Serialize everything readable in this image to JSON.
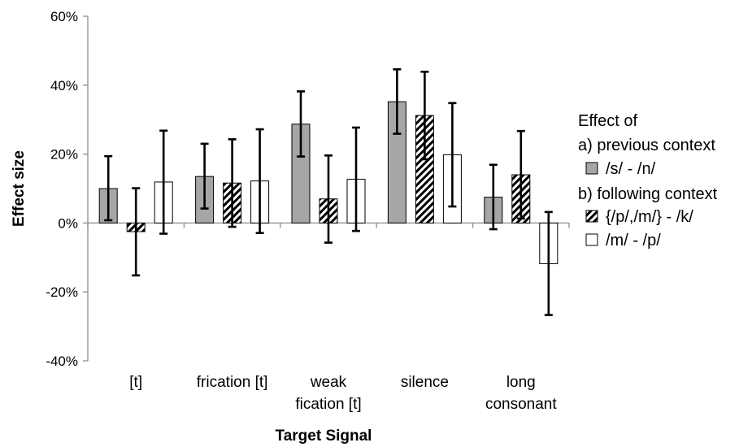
{
  "chart_data": {
    "type": "bar",
    "xlabel": "Target Signal",
    "ylabel": "Effect size",
    "ylim": [
      -40,
      60
    ],
    "y_ticks": [
      "-40%",
      "-20%",
      "0%",
      "20%",
      "40%",
      "60%"
    ],
    "y_tick_values": [
      -40,
      -20,
      0,
      20,
      40,
      60
    ],
    "grid": false,
    "legend_position": "right",
    "categories": [
      [
        "[t]"
      ],
      [
        "frication [t]"
      ],
      [
        "weak",
        "fication [t]"
      ],
      [
        "silence"
      ],
      [
        "long",
        "consonant"
      ]
    ],
    "series": [
      {
        "name": "/s/ - /n/",
        "pattern": "solid",
        "color": "#a6a6a6",
        "values": [
          10,
          13.5,
          28.7,
          35.2,
          7.5
        ],
        "err_low": [
          0.8,
          4.2,
          19.3,
          25.9,
          -1.8
        ],
        "err_high": [
          19.4,
          23,
          38.2,
          44.6,
          16.9
        ]
      },
      {
        "name": "{/p/,/m/} - /k/",
        "pattern": "hatched",
        "color": "#000000",
        "values": [
          -2.5,
          11.6,
          7,
          31.2,
          14
        ],
        "err_low": [
          -15.2,
          -1.1,
          -5.7,
          18.5,
          1.3
        ],
        "err_high": [
          10.1,
          24.3,
          19.6,
          43.9,
          26.7
        ]
      },
      {
        "name": "/m/ - /p/",
        "pattern": "open",
        "color": "#ffffff",
        "values": [
          11.9,
          12.2,
          12.7,
          19.8,
          -11.8
        ],
        "err_low": [
          -3.1,
          -2.9,
          -2.3,
          4.8,
          -26.7
        ],
        "err_high": [
          26.8,
          27.2,
          27.7,
          34.8,
          3.2
        ]
      }
    ],
    "legend": {
      "title": "Effect of",
      "group_a": "a) previous context",
      "group_b": "b) following context"
    }
  }
}
